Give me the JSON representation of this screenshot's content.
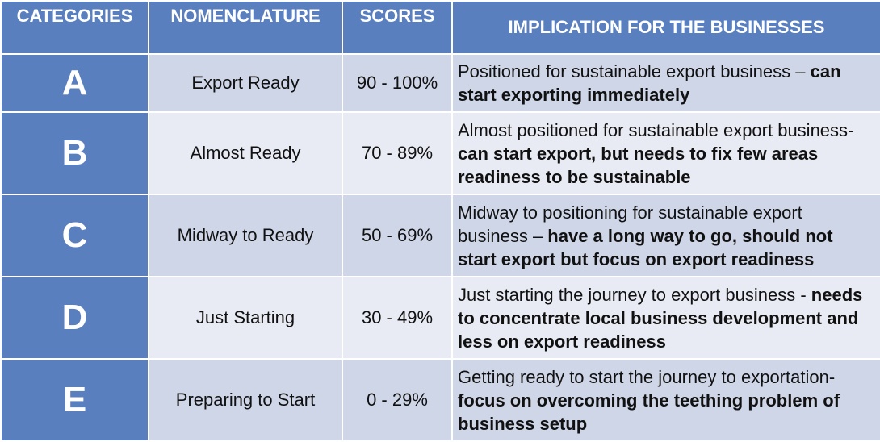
{
  "header": {
    "categories": "CATEGORIES",
    "nomenclature": "NOMENCLATURE",
    "scores": "SCORES",
    "implication": "IMPLICATION FOR THE BUSINESSES"
  },
  "rows": [
    {
      "category": "A",
      "nomenclature": "Export Ready",
      "score": "90 - 100%",
      "implication_plain": "Positioned for sustainable export business – ",
      "implication_bold": "can start exporting immediately"
    },
    {
      "category": "B",
      "nomenclature": "Almost Ready",
      "score": "70 - 89%",
      "implication_plain": "Almost positioned for sustainable export business- ",
      "implication_bold": "can start export, but needs to fix few areas readiness to be sustainable"
    },
    {
      "category": "C",
      "nomenclature": "Midway to Ready",
      "score": "50 - 69%",
      "implication_plain": "Midway to positioning for sustainable export business – ",
      "implication_bold": "have a long way to go, should not start export but focus on export readiness"
    },
    {
      "category": "D",
      "nomenclature": "Just Starting",
      "score": "30 - 49%",
      "implication_plain": "Just starting the journey to export business - ",
      "implication_bold": "needs to concentrate local business development and less on export readiness"
    },
    {
      "category": "E",
      "nomenclature": "Preparing to Start",
      "score": "0 - 29%",
      "implication_plain": "Getting ready to start the journey to exportation-  ",
      "implication_bold": "focus on overcoming the teething problem of business setup"
    }
  ]
}
